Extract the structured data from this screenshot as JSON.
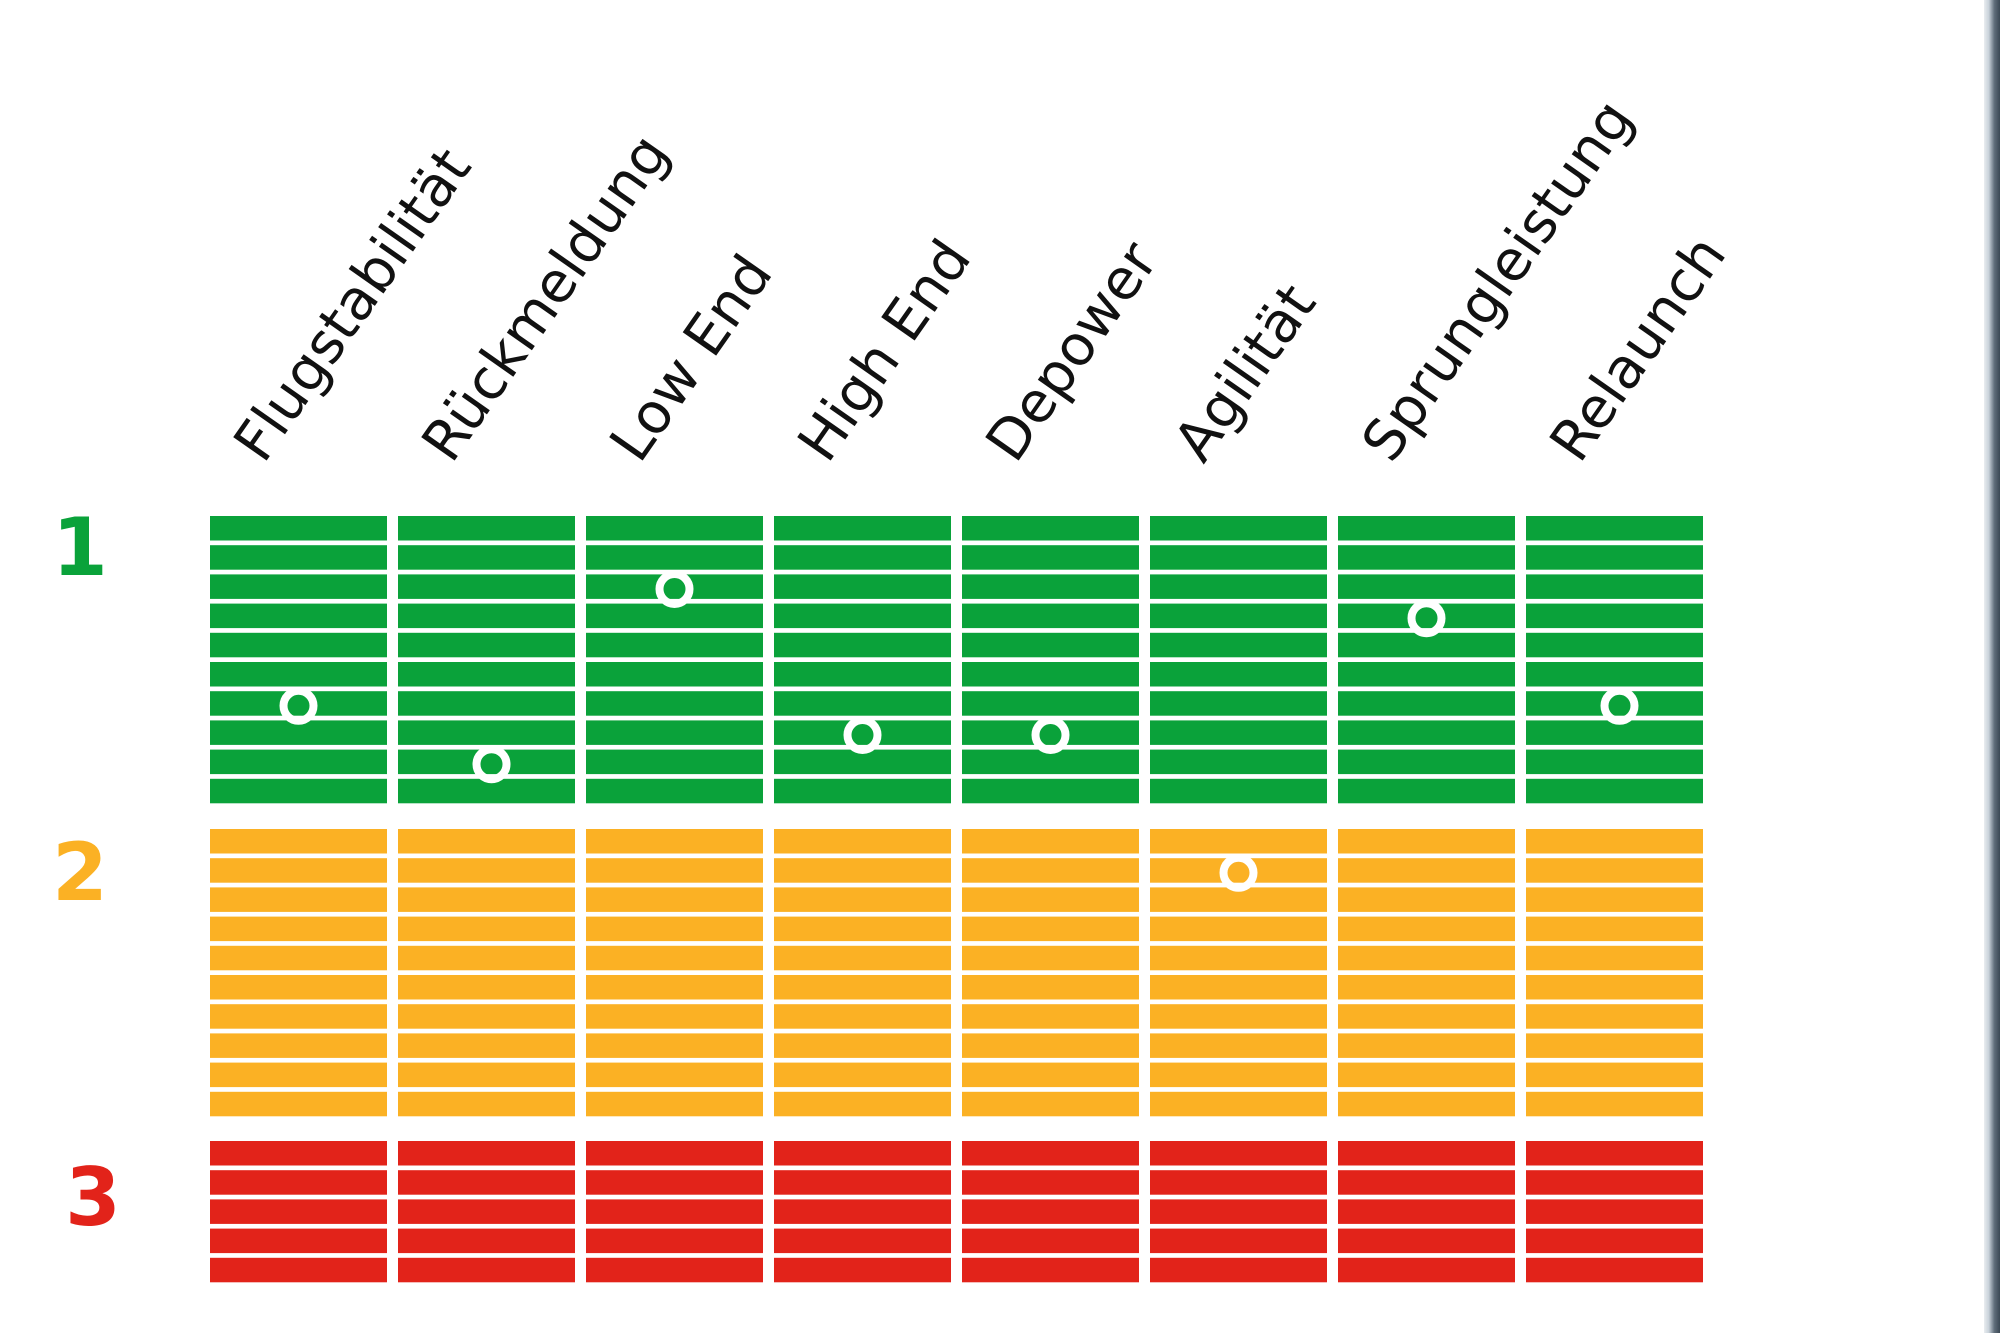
{
  "chart_data": {
    "type": "heatmap",
    "title": "",
    "criteria": [
      "Flugstabilität",
      "Rückmeldung",
      "Low End",
      "High End",
      "Depower",
      "Agilität",
      "Sprungleistung",
      "Relaunch"
    ],
    "levels": [
      {
        "label": "1",
        "color": "#0aa23a",
        "stripes": 10
      },
      {
        "label": "2",
        "color": "#fbb124",
        "stripes": 10
      },
      {
        "label": "3",
        "color": "#e2231a",
        "stripes": 5
      }
    ],
    "scale": {
      "min": 0,
      "max": 25,
      "note": "stripe index from top: 0-10 level 1, 10-20 level 2, 20-25 level 3"
    },
    "values": [
      6.5,
      8.5,
      2.5,
      7.5,
      7.5,
      11.5,
      3.5,
      6.5
    ]
  },
  "colors": {
    "background": "#ffffff",
    "marker": "#ffffff",
    "gap": "#ffffff"
  }
}
